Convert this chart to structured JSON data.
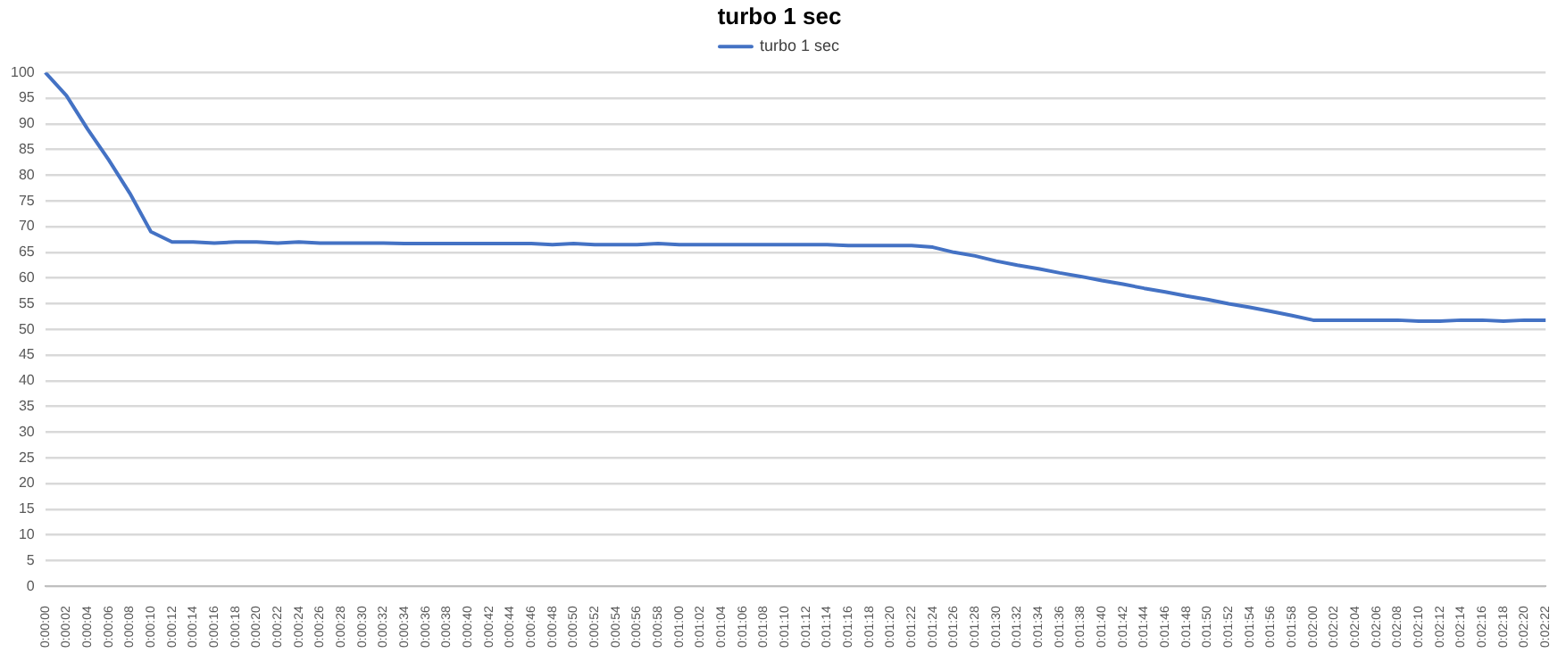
{
  "chart_data": {
    "type": "line",
    "title": "turbo 1 sec",
    "categories": [
      "0:00:00",
      "0:00:02",
      "0:00:04",
      "0:00:06",
      "0:00:08",
      "0:00:10",
      "0:00:12",
      "0:00:14",
      "0:00:16",
      "0:00:18",
      "0:00:20",
      "0:00:22",
      "0:00:24",
      "0:00:26",
      "0:00:28",
      "0:00:30",
      "0:00:32",
      "0:00:34",
      "0:00:36",
      "0:00:38",
      "0:00:40",
      "0:00:42",
      "0:00:44",
      "0:00:46",
      "0:00:48",
      "0:00:50",
      "0:00:52",
      "0:00:54",
      "0:00:56",
      "0:00:58",
      "0:01:00",
      "0:01:02",
      "0:01:04",
      "0:01:06",
      "0:01:08",
      "0:01:10",
      "0:01:12",
      "0:01:14",
      "0:01:16",
      "0:01:18",
      "0:01:20",
      "0:01:22",
      "0:01:24",
      "0:01:26",
      "0:01:28",
      "0:01:30",
      "0:01:32",
      "0:01:34",
      "0:01:36",
      "0:01:38",
      "0:01:40",
      "0:01:42",
      "0:01:44",
      "0:01:46",
      "0:01:48",
      "0:01:50",
      "0:01:52",
      "0:01:54",
      "0:01:56",
      "0:01:58",
      "0:02:00",
      "0:02:02",
      "0:02:04",
      "0:02:06",
      "0:02:08",
      "0:02:10",
      "0:02:12",
      "0:02:14",
      "0:02:16",
      "0:02:18",
      "0:02:20",
      "0:02:22"
    ],
    "series": [
      {
        "name": "turbo 1 sec",
        "color": "#4472c4",
        "values": [
          100,
          95.5,
          89,
          83,
          76.5,
          69,
          67,
          67,
          66.8,
          67,
          67,
          66.8,
          67,
          66.8,
          66.8,
          66.8,
          66.8,
          66.7,
          66.7,
          66.7,
          66.7,
          66.7,
          66.7,
          66.7,
          66.5,
          66.7,
          66.5,
          66.5,
          66.5,
          66.7,
          66.5,
          66.5,
          66.5,
          66.5,
          66.5,
          66.5,
          66.5,
          66.5,
          66.3,
          66.3,
          66.3,
          66.3,
          66,
          65,
          64.3,
          63.3,
          62.5,
          61.8,
          61,
          60.3,
          59.5,
          58.8,
          58,
          57.3,
          56.5,
          55.8,
          55,
          54.3,
          53.5,
          52.7,
          51.8,
          51.8,
          51.8,
          51.8,
          51.8,
          51.6,
          51.6,
          51.8,
          51.8,
          51.6,
          51.8,
          51.8
        ]
      }
    ],
    "ylim": [
      0,
      100
    ],
    "yticks": [
      0,
      5,
      10,
      15,
      20,
      25,
      30,
      35,
      40,
      45,
      50,
      55,
      60,
      65,
      70,
      75,
      80,
      85,
      90,
      95,
      100
    ],
    "grid": "y",
    "legend": "top",
    "marker": "none",
    "line_style": "solid"
  }
}
